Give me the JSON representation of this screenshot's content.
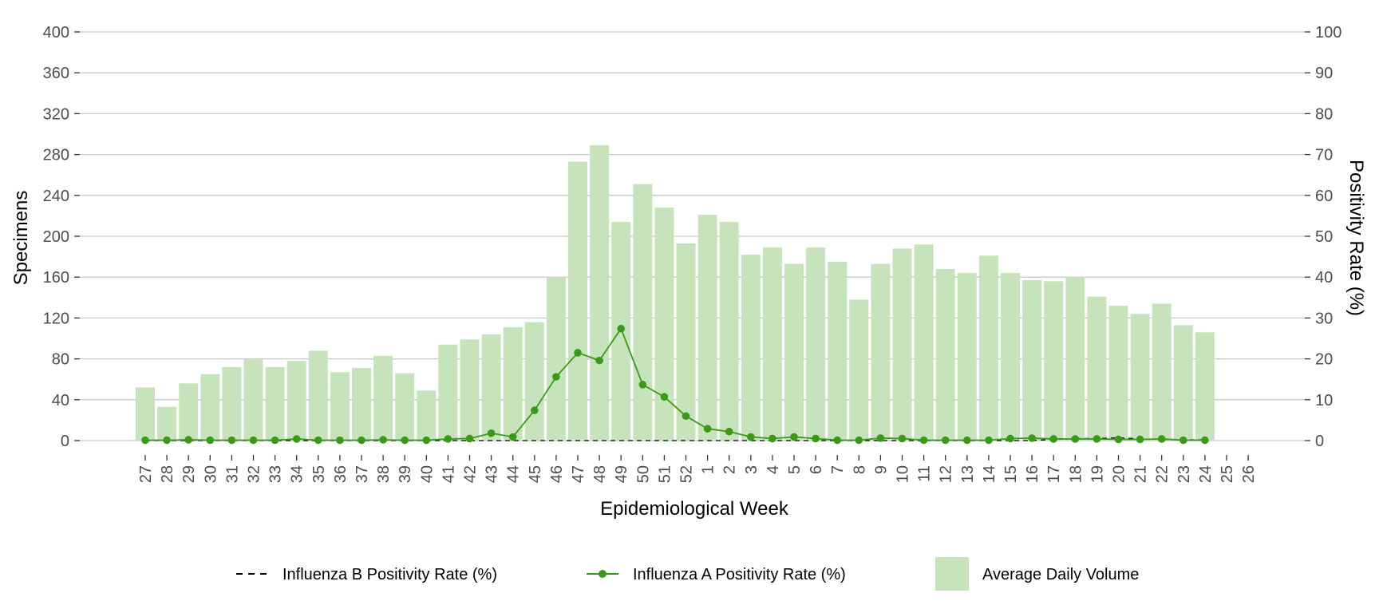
{
  "chart_data": {
    "type": "bar",
    "xlabel": "Epidemiological Week",
    "ylabel_left": "Specimens",
    "ylabel_right": "Positivity Rate (%)",
    "ylim_left": [
      0,
      400
    ],
    "yticks_left": [
      0,
      40,
      80,
      120,
      160,
      200,
      240,
      280,
      320,
      360,
      400
    ],
    "ylim_right": [
      0,
      100
    ],
    "yticks_right": [
      0,
      10,
      20,
      30,
      40,
      50,
      60,
      70,
      80,
      90,
      100
    ],
    "grid": true,
    "legend_position": "bottom",
    "categories": [
      "27",
      "28",
      "29",
      "30",
      "31",
      "32",
      "33",
      "34",
      "35",
      "36",
      "37",
      "38",
      "39",
      "40",
      "41",
      "42",
      "43",
      "44",
      "45",
      "46",
      "47",
      "48",
      "49",
      "50",
      "51",
      "52",
      "1",
      "2",
      "3",
      "4",
      "5",
      "6",
      "7",
      "8",
      "9",
      "10",
      "11",
      "12",
      "13",
      "14",
      "15",
      "16",
      "17",
      "18",
      "19",
      "20",
      "21",
      "22",
      "23",
      "24",
      "25",
      "26"
    ],
    "series": [
      {
        "name": "Average Daily Volume",
        "kind": "bar",
        "axis": "left",
        "color": "#c7e3bb",
        "values": [
          52,
          33,
          56,
          65,
          72,
          80,
          72,
          78,
          88,
          67,
          71,
          83,
          66,
          49,
          94,
          99,
          104,
          111,
          116,
          160,
          273,
          289,
          214,
          251,
          228,
          193,
          221,
          214,
          182,
          189,
          173,
          189,
          175,
          138,
          173,
          188,
          192,
          168,
          164,
          181,
          164,
          157,
          156,
          160,
          141,
          132,
          124,
          134,
          113,
          106,
          null,
          null
        ]
      },
      {
        "name": "Influenza A Positivity Rate (%)",
        "kind": "line",
        "axis": "right",
        "color": "#3a9a18",
        "values": [
          0.1,
          0.1,
          0.2,
          0.1,
          0.1,
          0.1,
          0.1,
          0.4,
          0.1,
          0.1,
          0.1,
          0.2,
          0.1,
          0.1,
          0.4,
          0.5,
          1.8,
          0.9,
          7.4,
          15.6,
          21.5,
          19.6,
          27.4,
          13.7,
          10.7,
          6.0,
          2.9,
          2.2,
          0.9,
          0.5,
          0.9,
          0.5,
          0.1,
          0.1,
          0.6,
          0.5,
          0.1,
          0.1,
          0.1,
          0.1,
          0.5,
          0.6,
          0.4,
          0.4,
          0.4,
          0.3,
          0.3,
          0.4,
          0.1,
          0.1,
          null,
          null
        ]
      },
      {
        "name": "Influenza B Positivity Rate (%)",
        "kind": "line-dashed",
        "axis": "right",
        "color": "#000000",
        "values": [
          0,
          0,
          0,
          0,
          0,
          0,
          0,
          0,
          0,
          0,
          0,
          0,
          0,
          0,
          0,
          0,
          0,
          0,
          0,
          0,
          0,
          0,
          0,
          0,
          0,
          0,
          0,
          0,
          0,
          0,
          0,
          0,
          0,
          0,
          0,
          0,
          0,
          0,
          0,
          0,
          0,
          0,
          0.3,
          0.5,
          0.5,
          0.7,
          0.4,
          0.3,
          0.2,
          0.2,
          null,
          null
        ]
      }
    ],
    "legend": [
      {
        "label": "Influenza B Positivity Rate (%)",
        "marker": "dashed-line"
      },
      {
        "label": "Influenza A Positivity Rate (%)",
        "marker": "line-point"
      },
      {
        "label": "Average Daily Volume",
        "marker": "box"
      }
    ]
  }
}
